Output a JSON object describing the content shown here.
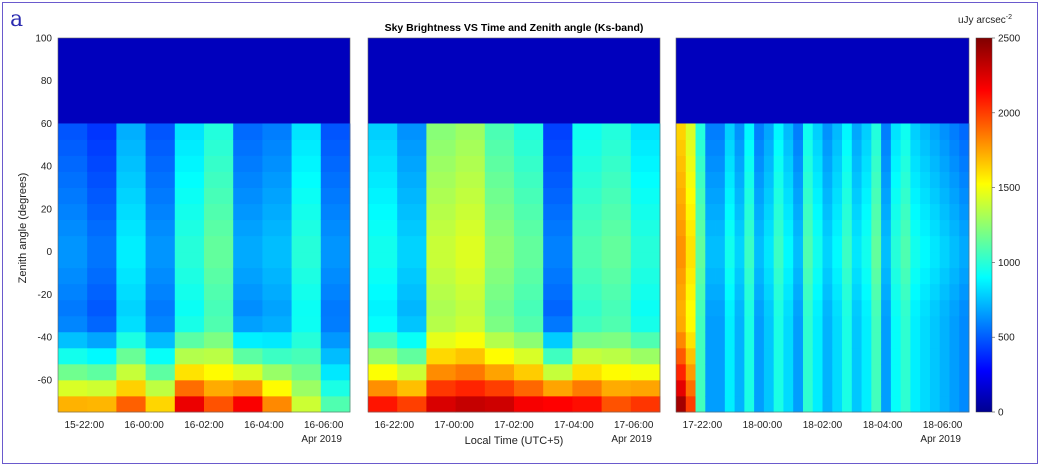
{
  "panel_label": "a",
  "chart_data": {
    "type": "heatmap",
    "title": "Sky Brightness VS Time and Zenith angle (Ks-band)",
    "ylabel": "Zenith angle (degrees)",
    "xlabel": "Local Time (UTC+5)",
    "ylim": [
      -75,
      100
    ],
    "yticks": [
      "100",
      "80",
      "60",
      "40",
      "20",
      "0",
      "-20",
      "-40",
      "-60"
    ],
    "colorbar": {
      "unit": "uJy arcsec",
      "unit_sup": "-2",
      "range": [
        0,
        2500
      ],
      "ticks": [
        "2500",
        "2000",
        "1500",
        "1000",
        "500",
        "0"
      ],
      "colormap": "jet"
    },
    "panels": [
      {
        "xticks": [
          "15-22:00",
          "16-00:00",
          "16-02:00",
          "16-04:00",
          "16-06:00"
        ],
        "date_label": "Apr 2019",
        "columns": 10,
        "above_60_value": 150,
        "column_mid_values": [
          600,
          520,
          820,
          600,
          950,
          1100,
          650,
          700,
          950,
          600
        ],
        "column_bottom_values": [
          1900,
          1900,
          2100,
          1800,
          2400,
          2100,
          2400,
          2000,
          1500,
          1200
        ]
      },
      {
        "xticks": [
          "16-22:00",
          "17-00:00",
          "17-02:00",
          "17-04:00",
          "17-06:00"
        ],
        "date_label": "Apr 2019",
        "columns": 10,
        "above_60_value": 150,
        "column_mid_values": [
          900,
          750,
          1350,
          1400,
          1200,
          1100,
          550,
          1050,
          1100,
          950
        ],
        "column_bottom_values": [
          2300,
          2200,
          2400,
          2450,
          2450,
          2350,
          2400,
          2300,
          2100,
          2200
        ]
      },
      {
        "xticks": [
          "17-22:00",
          "18-00:00",
          "18-02:00",
          "18-04:00",
          "18-06:00"
        ],
        "date_label": "Apr 2019",
        "columns": 30,
        "above_60_value": 150,
        "column_mid_values": [
          1750,
          1550,
          1100,
          700,
          700,
          900,
          750,
          1000,
          700,
          800,
          1000,
          850,
          700,
          1050,
          900,
          750,
          850,
          1000,
          800,
          900,
          1100,
          700,
          950,
          1050,
          900,
          850,
          800,
          750,
          700,
          650
        ],
        "column_bottom_values": [
          2500,
          2100,
          1100,
          700,
          700,
          900,
          750,
          1000,
          700,
          800,
          1000,
          850,
          700,
          1050,
          900,
          750,
          850,
          1000,
          800,
          900,
          1100,
          700,
          950,
          1050,
          900,
          850,
          800,
          750,
          700,
          650
        ]
      }
    ]
  }
}
